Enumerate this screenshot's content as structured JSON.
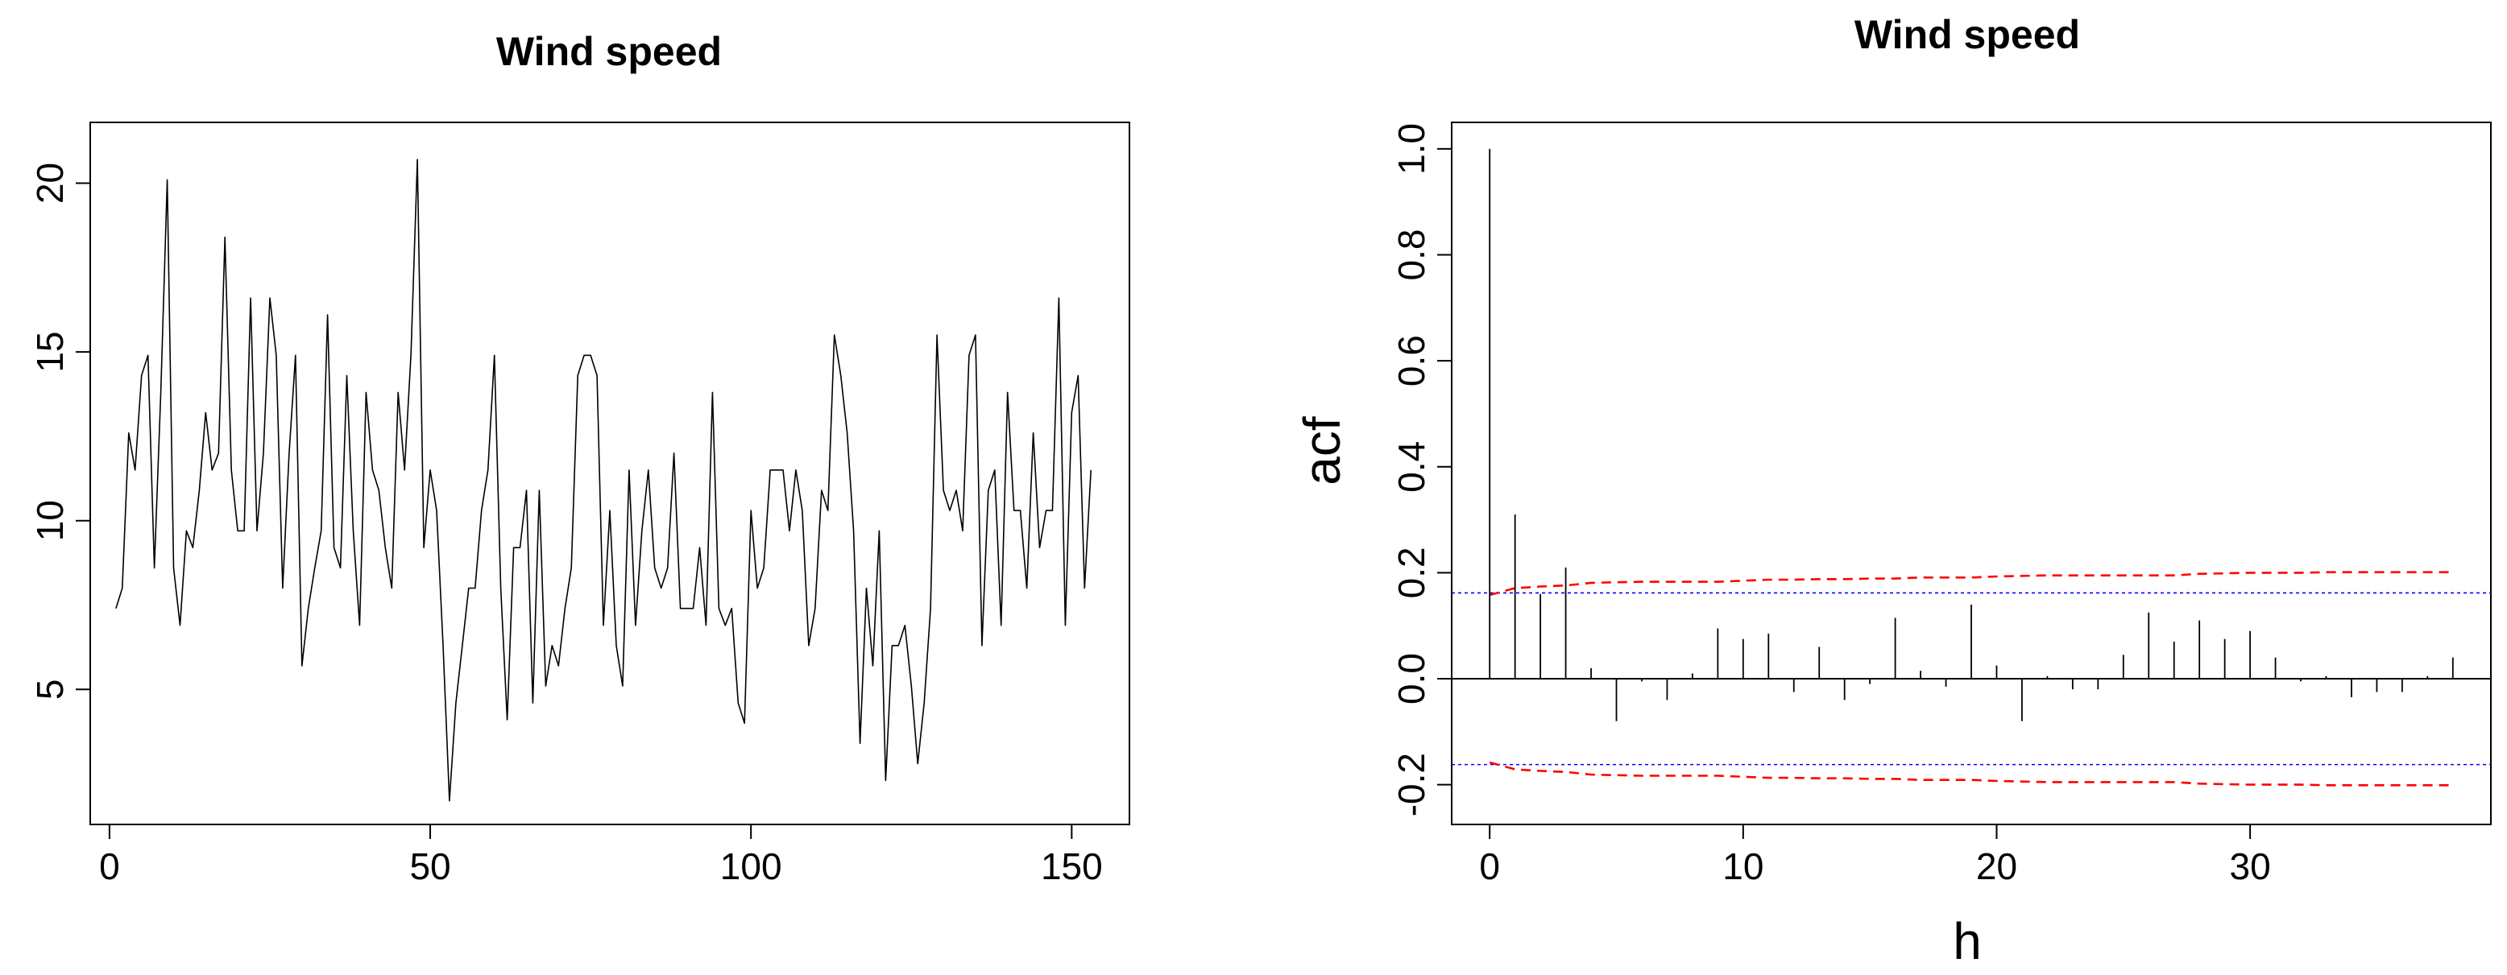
{
  "chart_data": [
    {
      "type": "line",
      "title": "Wind speed",
      "xlabel": "",
      "ylabel": "",
      "xlim": [
        -3,
        159
      ],
      "ylim": [
        1,
        21.8
      ],
      "xticks": [
        0,
        50,
        100,
        150
      ],
      "xtick_labels": [
        "0",
        "50",
        "100",
        "150"
      ],
      "yticks": [
        5,
        10,
        15,
        20
      ],
      "ytick_labels": [
        "5",
        "10",
        "15",
        "20"
      ],
      "grid": false,
      "legend": "none",
      "series": [
        {
          "color": "#000000",
          "x": [
            1,
            2,
            3,
            4,
            5,
            6,
            7,
            8,
            9,
            10,
            11,
            12,
            13,
            14,
            15,
            16,
            17,
            18,
            19,
            20,
            21,
            22,
            23,
            24,
            25,
            26,
            27,
            28,
            29,
            30,
            31,
            32,
            33,
            34,
            35,
            36,
            37,
            38,
            39,
            40,
            41,
            42,
            43,
            44,
            45,
            46,
            47,
            48,
            49,
            50,
            51,
            52,
            53,
            54,
            55,
            56,
            57,
            58,
            59,
            60,
            61,
            62,
            63,
            64,
            65,
            66,
            67,
            68,
            69,
            70,
            71,
            72,
            73,
            74,
            75,
            76,
            77,
            78,
            79,
            80,
            81,
            82,
            83,
            84,
            85,
            86,
            87,
            88,
            89,
            90,
            91,
            92,
            93,
            94,
            95,
            96,
            97,
            98,
            99,
            100,
            101,
            102,
            103,
            104,
            105,
            106,
            107,
            108,
            109,
            110,
            111,
            112,
            113,
            114,
            115,
            116,
            117,
            118,
            119,
            120,
            121,
            122,
            123,
            124,
            125,
            126,
            127,
            128,
            129,
            130,
            131,
            132,
            133,
            134,
            135,
            136,
            137,
            138,
            139,
            140,
            141,
            142,
            143,
            144,
            145,
            146,
            147,
            148,
            149,
            150,
            151,
            152,
            153
          ],
          "y": [
            7.4,
            8.0,
            12.6,
            11.5,
            14.3,
            14.9,
            8.6,
            13.8,
            20.1,
            8.6,
            6.9,
            9.7,
            9.2,
            10.9,
            13.2,
            11.5,
            12.0,
            18.4,
            11.5,
            9.7,
            9.7,
            16.6,
            9.7,
            12.0,
            16.6,
            14.9,
            8.0,
            12.0,
            14.9,
            5.7,
            7.4,
            8.6,
            9.7,
            16.1,
            9.2,
            8.6,
            14.3,
            9.7,
            6.9,
            13.8,
            11.5,
            10.9,
            9.2,
            8.0,
            13.8,
            11.5,
            14.9,
            20.7,
            9.2,
            11.5,
            10.3,
            6.3,
            1.7,
            4.6,
            6.3,
            8.0,
            8.0,
            10.3,
            11.5,
            14.9,
            8.0,
            4.1,
            9.2,
            9.2,
            10.9,
            4.6,
            10.9,
            5.1,
            6.3,
            5.7,
            7.4,
            8.6,
            14.3,
            14.9,
            14.9,
            14.3,
            6.9,
            10.3,
            6.3,
            5.1,
            11.5,
            6.9,
            9.7,
            11.5,
            8.6,
            8.0,
            8.6,
            12.0,
            7.4,
            7.4,
            7.4,
            9.2,
            6.9,
            13.8,
            7.4,
            6.9,
            7.4,
            4.6,
            4.0,
            10.3,
            8.0,
            8.6,
            11.5,
            11.5,
            11.5,
            9.7,
            11.5,
            10.3,
            6.3,
            7.4,
            10.9,
            10.3,
            15.5,
            14.3,
            12.6,
            9.7,
            3.4,
            8.0,
            5.7,
            9.7,
            2.3,
            6.3,
            6.3,
            6.9,
            5.1,
            2.8,
            4.6,
            7.4,
            15.5,
            10.9,
            10.3,
            10.9,
            9.7,
            14.9,
            15.5,
            6.3,
            10.9,
            11.5,
            6.9,
            13.8,
            10.3,
            10.3,
            8.0,
            12.6,
            9.2,
            10.3,
            10.3,
            16.6,
            6.9,
            13.2,
            14.3,
            8.0,
            11.5
          ]
        }
      ]
    },
    {
      "type": "bar",
      "title": "Wind speed",
      "xlabel": "h",
      "ylabel": "acf",
      "xlim": [
        -1.5,
        39.5
      ],
      "ylim": [
        -0.275,
        1.05
      ],
      "xticks": [
        0,
        10,
        20,
        30
      ],
      "xtick_labels": [
        "0",
        "10",
        "20",
        "30"
      ],
      "yticks": [
        -0.2,
        0.0,
        0.2,
        0.4,
        0.6,
        0.8,
        1.0
      ],
      "ytick_labels": [
        "-0.2",
        "0.0",
        "0.2",
        "0.4",
        "0.6",
        "0.8",
        "1.0"
      ],
      "grid": false,
      "legend": "none",
      "x": [
        0,
        1,
        2,
        3,
        4,
        5,
        6,
        7,
        8,
        9,
        10,
        11,
        12,
        13,
        14,
        15,
        16,
        17,
        18,
        19,
        20,
        21,
        22,
        23,
        24,
        25,
        26,
        27,
        28,
        29,
        30,
        31,
        32,
        33,
        34,
        35,
        36,
        37,
        38
      ],
      "values": [
        1.0,
        0.31,
        0.16,
        0.21,
        0.02,
        -0.08,
        -0.005,
        -0.04,
        0.01,
        0.095,
        0.075,
        0.085,
        -0.025,
        0.06,
        -0.04,
        -0.01,
        0.115,
        0.015,
        -0.015,
        0.14,
        0.025,
        -0.08,
        0.005,
        -0.02,
        -0.02,
        0.045,
        0.125,
        0.07,
        0.11,
        0.075,
        0.09,
        0.04,
        -0.005,
        0.005,
        -0.035,
        -0.025,
        -0.025,
        0.005,
        0.04
      ],
      "band_upper": [
        0.158,
        0.171,
        0.174,
        0.176,
        0.181,
        0.182,
        0.183,
        0.183,
        0.183,
        0.183,
        0.185,
        0.187,
        0.187,
        0.188,
        0.188,
        0.189,
        0.189,
        0.191,
        0.191,
        0.191,
        0.193,
        0.194,
        0.195,
        0.195,
        0.195,
        0.195,
        0.195,
        0.195,
        0.198,
        0.199,
        0.2,
        0.2,
        0.2,
        0.201,
        0.201,
        0.201,
        0.201,
        0.201,
        0.201
      ],
      "band_lower": [
        -0.158,
        -0.171,
        -0.174,
        -0.176,
        -0.181,
        -0.182,
        -0.183,
        -0.183,
        -0.183,
        -0.183,
        -0.185,
        -0.187,
        -0.187,
        -0.188,
        -0.188,
        -0.189,
        -0.189,
        -0.191,
        -0.191,
        -0.191,
        -0.193,
        -0.194,
        -0.195,
        -0.195,
        -0.195,
        -0.195,
        -0.195,
        -0.195,
        -0.198,
        -0.199,
        -0.2,
        -0.2,
        -0.2,
        -0.201,
        -0.201,
        -0.201,
        -0.201,
        -0.201,
        -0.201
      ],
      "band_color": "#ff0000",
      "bound": 0.162,
      "bound_color": "#0000ff",
      "bar_color": "#000000"
    }
  ]
}
